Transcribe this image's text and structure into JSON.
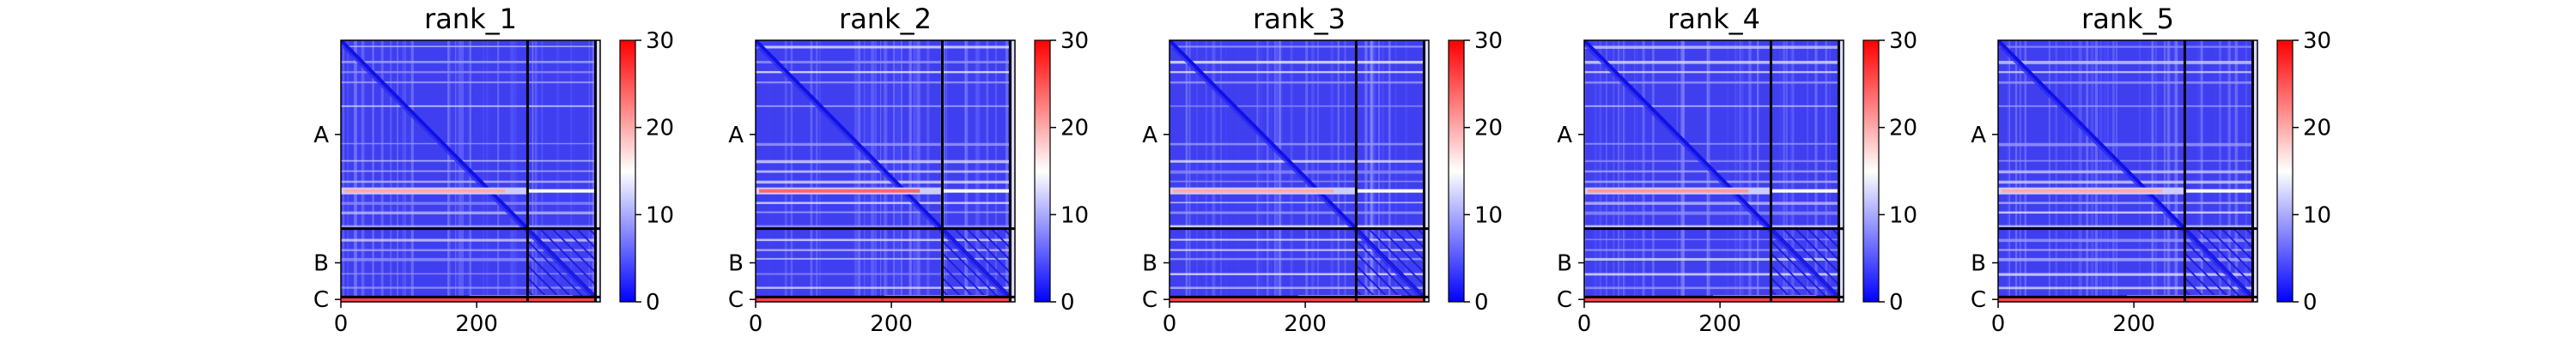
{
  "chart_data": [
    {
      "type": "heatmap",
      "title": "rank_1",
      "x_ticks": [
        0,
        200
      ],
      "chains": [
        {
          "label": "A",
          "start": 0,
          "end": 275
        },
        {
          "label": "B",
          "start": 275,
          "end": 375
        },
        {
          "label": "C",
          "start": 375,
          "end": 382
        }
      ],
      "colorbar": {
        "min": 0,
        "max": 30,
        "ticks": [
          0,
          10,
          20,
          30
        ],
        "colors": [
          "#0000ff",
          "#ffffff",
          "#ff0000"
        ]
      },
      "hot_row": {
        "position": 220,
        "value": 20
      }
    },
    {
      "type": "heatmap",
      "title": "rank_2",
      "x_ticks": [
        0,
        200
      ],
      "chains": [
        {
          "label": "A",
          "start": 0,
          "end": 275
        },
        {
          "label": "B",
          "start": 275,
          "end": 375
        },
        {
          "label": "C",
          "start": 375,
          "end": 382
        }
      ],
      "colorbar": {
        "min": 0,
        "max": 30,
        "ticks": [
          0,
          10,
          20,
          30
        ],
        "colors": [
          "#0000ff",
          "#ffffff",
          "#ff0000"
        ]
      },
      "hot_row": {
        "position": 220,
        "value": 24
      }
    },
    {
      "type": "heatmap",
      "title": "rank_3",
      "x_ticks": [
        0,
        200
      ],
      "chains": [
        {
          "label": "A",
          "start": 0,
          "end": 275
        },
        {
          "label": "B",
          "start": 275,
          "end": 375
        },
        {
          "label": "C",
          "start": 375,
          "end": 382
        }
      ],
      "colorbar": {
        "min": 0,
        "max": 30,
        "ticks": [
          0,
          10,
          20,
          30
        ],
        "colors": [
          "#0000ff",
          "#ffffff",
          "#ff0000"
        ]
      },
      "hot_row": {
        "position": 220,
        "value": 20
      }
    },
    {
      "type": "heatmap",
      "title": "rank_4",
      "x_ticks": [
        0,
        200
      ],
      "chains": [
        {
          "label": "A",
          "start": 0,
          "end": 275
        },
        {
          "label": "B",
          "start": 275,
          "end": 375
        },
        {
          "label": "C",
          "start": 375,
          "end": 382
        }
      ],
      "colorbar": {
        "min": 0,
        "max": 30,
        "ticks": [
          0,
          10,
          20,
          30
        ],
        "colors": [
          "#0000ff",
          "#ffffff",
          "#ff0000"
        ]
      },
      "hot_row": {
        "position": 220,
        "value": 21
      }
    },
    {
      "type": "heatmap",
      "title": "rank_5",
      "x_ticks": [
        0,
        200
      ],
      "chains": [
        {
          "label": "A",
          "start": 0,
          "end": 275
        },
        {
          "label": "B",
          "start": 275,
          "end": 375
        },
        {
          "label": "C",
          "start": 375,
          "end": 382
        }
      ],
      "colorbar": {
        "min": 0,
        "max": 30,
        "ticks": [
          0,
          10,
          20,
          30
        ],
        "colors": [
          "#0000ff",
          "#ffffff",
          "#ff0000"
        ]
      },
      "hot_row": {
        "position": 220,
        "value": 20
      }
    }
  ]
}
